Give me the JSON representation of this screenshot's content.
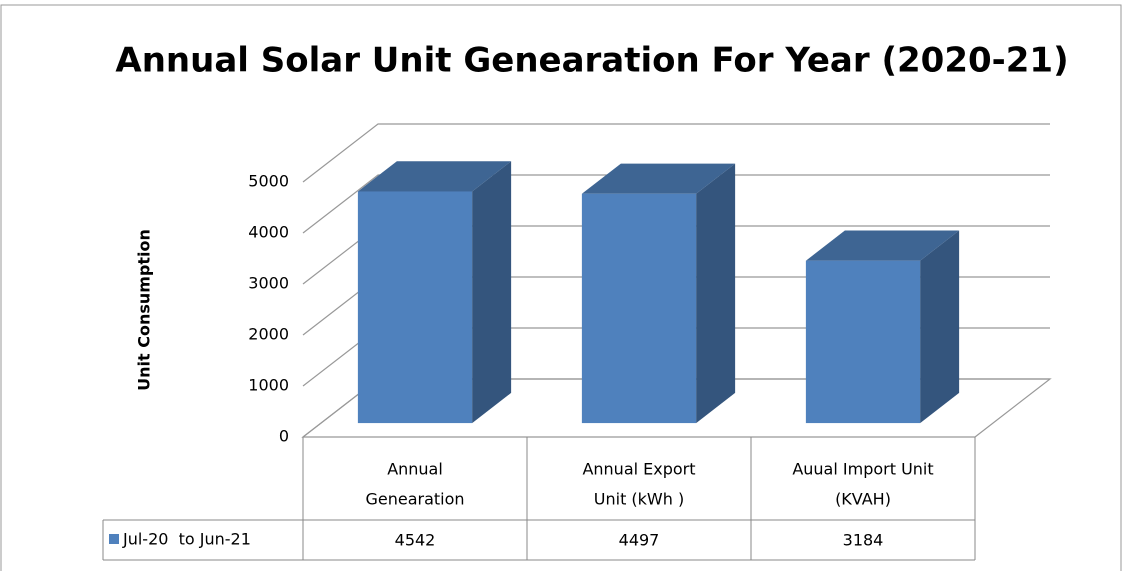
{
  "chart_data": {
    "type": "bar3d",
    "title": "Annual Solar Unit Genearation For Year (2020-21)",
    "y_axis_label": "Unit Consumption",
    "categories": [
      [
        "Annual",
        "Genearation"
      ],
      [
        "Annual Export",
        "Unit (kWh )"
      ],
      [
        "Auual Import Unit",
        "(KVAH)"
      ]
    ],
    "series": [
      {
        "name": "Jul-20  to Jun-21",
        "color": "#4f81bd",
        "values": [
          4542,
          4497,
          3184
        ]
      }
    ],
    "ylim": [
      0,
      5000
    ],
    "yticks": [
      0,
      1000,
      2000,
      3000,
      4000,
      5000
    ],
    "grid": true,
    "data_table": true
  }
}
